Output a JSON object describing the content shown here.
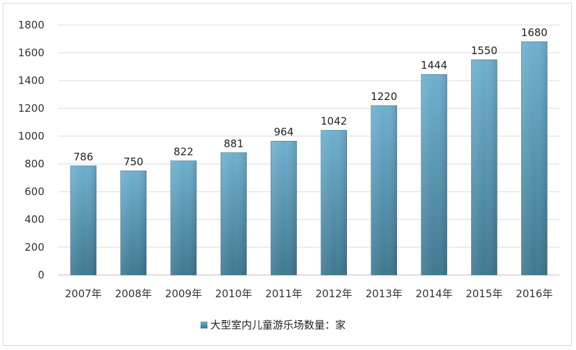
{
  "chart_data": {
    "type": "bar",
    "categories": [
      "2007年",
      "2008年",
      "2009年",
      "2010年",
      "2011年",
      "2012年",
      "2013年",
      "2014年",
      "2015年",
      "2016年"
    ],
    "series": [
      {
        "name": "大型室内儿童游乐场数量：家",
        "values": [
          786,
          750,
          822,
          881,
          964,
          1042,
          1220,
          1444,
          1550,
          1680
        ]
      }
    ],
    "ylim": [
      0,
      1800
    ],
    "yticks": [
      0,
      200,
      400,
      600,
      800,
      1000,
      1200,
      1400,
      1600,
      1800
    ],
    "grid": true,
    "legend": "bottom",
    "colors": {
      "bar_top": "#6fb0cf",
      "bar_bottom": "#3f7890",
      "grid": "#d9d9d9",
      "axis": "#bfbfbf"
    }
  }
}
